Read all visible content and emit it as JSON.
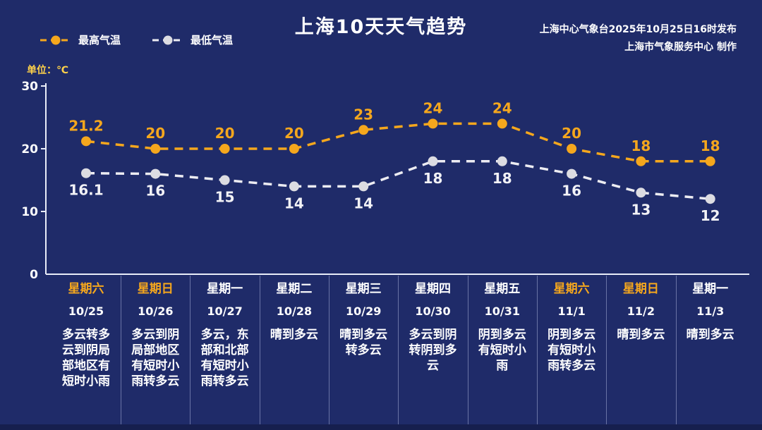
{
  "header": {
    "title": "上海10天天气趋势",
    "source_line1": "上海中心气象台2025年10月25日16时发布",
    "source_line2": "上海市气象服务中心  制作"
  },
  "legend": {
    "max_label": "最高气温",
    "min_label": "最低气温"
  },
  "unit_label": "单位：℃",
  "colors": {
    "background": "#1f2b69",
    "max": "#f5a71d",
    "min_line": "#ececf2",
    "min_marker": "#dcdce2",
    "min_label": "#f2f2f6",
    "axis": "#e8ecf8",
    "weekend": "#f5a71d",
    "weekday": "#ffffff"
  },
  "chart_data": {
    "type": "line",
    "title": "上海10天天气趋势",
    "ylabel": "单位：℃",
    "ylim": [
      0,
      30
    ],
    "yticks": [
      0,
      10,
      20,
      30
    ],
    "categories": [
      "星期六",
      "星期日",
      "星期一",
      "星期二",
      "星期三",
      "星期四",
      "星期五",
      "星期六",
      "星期日",
      "星期一"
    ],
    "dates": [
      "10/25",
      "10/26",
      "10/27",
      "10/28",
      "10/29",
      "10/30",
      "10/31",
      "11/1",
      "11/2",
      "11/3"
    ],
    "weekend_flags": [
      true,
      true,
      false,
      false,
      false,
      false,
      false,
      true,
      true,
      false
    ],
    "descriptions": [
      "多云转多云到阴局部地区有短时小雨",
      "多云到阴局部地区有短时小雨转多云",
      "多云，东部和北部有短时小雨转多云",
      "晴到多云",
      "晴到多云转多云",
      "多云到阴转阴到多云",
      "阴到多云有短时小雨",
      "阴到多云有短时小雨转多云",
      "晴到多云",
      "晴到多云"
    ],
    "series": [
      {
        "name": "最高气温",
        "color": "#f5a71d",
        "values": [
          21.2,
          20,
          20,
          20,
          23,
          24,
          24,
          20,
          18,
          18
        ]
      },
      {
        "name": "最低气温",
        "color": "#ececf2",
        "values": [
          16.1,
          16,
          15,
          14,
          14,
          18,
          18,
          16,
          13,
          12
        ]
      }
    ],
    "legend_position": "top-left",
    "grid": false
  }
}
